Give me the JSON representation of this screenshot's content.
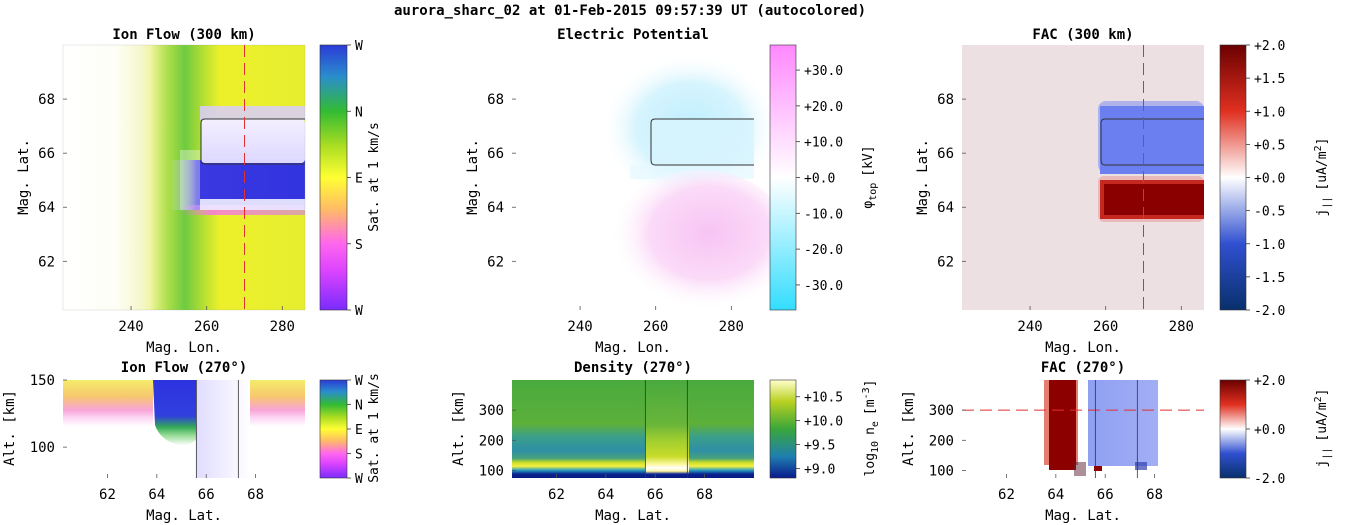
{
  "suptitle": "aurora_sharc_02 at 01-Feb-2015 09:57:39 UT (autocolored)",
  "colors": {
    "ref_line": "#e03030",
    "contour": "#333333",
    "fac_background": "#ede0e3",
    "fac_blue": "#6b7ff0",
    "fac_red": "#8a0000"
  },
  "chart_data": [
    {
      "id": "ion-flow-300",
      "type": "heatmap",
      "title": "Ion Flow (300 km)",
      "xlabel": "Mag. Lon.",
      "ylabel": "Mag. Lat.",
      "xlim": [
        222,
        286
      ],
      "ylim": [
        60.2,
        70
      ],
      "xticks": [
        240,
        260,
        280
      ],
      "yticks": [
        62,
        64,
        66,
        68
      ],
      "ref_line": {
        "orientation": "vertical",
        "value": 270
      },
      "contour_box": {
        "lon": [
          259.5,
          286
        ],
        "lat": [
          65.6,
          67.3
        ]
      },
      "colorbar": {
        "label": "Sat. at 1 km/s",
        "ticks": [
          "W",
          "N",
          "E",
          "S",
          "W"
        ],
        "colors": [
          "#7a2bff",
          "#ff66ff",
          "#ffff33",
          "#33bb33",
          "#2a3bd8"
        ]
      }
    },
    {
      "id": "electric-potential",
      "type": "heatmap",
      "title": "Electric Potential",
      "xlabel": "Mag. Lon.",
      "ylabel": "Mag. Lat.",
      "xlim": [
        222,
        286
      ],
      "ylim": [
        60.2,
        70
      ],
      "xticks": [
        240,
        260,
        280
      ],
      "yticks": [
        62,
        64,
        66,
        68
      ],
      "contour_box": {
        "lon": [
          259.5,
          286
        ],
        "lat": [
          65.6,
          67.3
        ]
      },
      "colorbar": {
        "label": "φ_top [kV]",
        "label_main": "φ",
        "label_sub": "top",
        "label_unit": "[kV]",
        "ticks": [
          "+30.0",
          "+20.0",
          "+10.0",
          "+0.0",
          "-10.0",
          "-20.0",
          "-30.0"
        ],
        "range": [
          -37,
          37
        ],
        "colors": [
          "#33ddff",
          "#ffffff",
          "#ff88ff"
        ]
      }
    },
    {
      "id": "fac-300",
      "type": "heatmap",
      "title": "FAC (300 km)",
      "xlabel": "Mag. Lon.",
      "ylabel": "Mag. Lat.",
      "xlim": [
        222,
        286
      ],
      "ylim": [
        60.2,
        70
      ],
      "xticks": [
        240,
        260,
        280
      ],
      "yticks": [
        62,
        64,
        66,
        68
      ],
      "ref_line": {
        "orientation": "vertical",
        "value": 270
      },
      "contour_box": {
        "lon": [
          259.5,
          286
        ],
        "lat": [
          65.6,
          67.3
        ]
      },
      "colorbar": {
        "label": "j_|| [uA/m^2]",
        "ticks": [
          "+2.0",
          "+1.5",
          "+1.0",
          "+0.5",
          "+0.0",
          "-0.5",
          "-1.0",
          "-1.5",
          "-2.0"
        ],
        "range": [
          -2.0,
          2.0
        ],
        "colors": [
          "#08306b",
          "#3050d0",
          "#ffffff",
          "#e03020",
          "#6b0000"
        ]
      }
    },
    {
      "id": "ion-flow-270",
      "type": "heatmap",
      "title": "Ion Flow (270°)",
      "xlabel": "Mag. Lat.",
      "ylabel": "Alt. [km]",
      "xlim": [
        60.2,
        70
      ],
      "ylim": [
        77,
        150
      ],
      "xticks": [
        62,
        64,
        66,
        68
      ],
      "yticks": [
        100,
        150
      ],
      "vlines": [
        65.6,
        67.3
      ],
      "colorbar": {
        "label": "Sat. at 1 km/s",
        "ticks": [
          "W",
          "N",
          "E",
          "S",
          "W"
        ],
        "colors": [
          "#7a2bff",
          "#ff66ff",
          "#ffff33",
          "#33bb33",
          "#2a3bd8"
        ]
      }
    },
    {
      "id": "density-270",
      "type": "heatmap",
      "title": "Density (270°)",
      "xlabel": "Mag. Lat.",
      "ylabel": "Alt. [km]",
      "xlim": [
        60.2,
        70
      ],
      "ylim": [
        75,
        400
      ],
      "xticks": [
        62,
        64,
        66,
        68
      ],
      "yticks": [
        100,
        200,
        300
      ],
      "vlines": [
        65.6,
        67.3
      ],
      "colorbar": {
        "label": "log_10 n_e [m^-3]",
        "ticks": [
          "+10.5",
          "+10.0",
          "+9.5",
          "+9.0"
        ],
        "range": [
          8.8,
          10.85
        ],
        "colors": [
          "#0a1a8c",
          "#1f7fb0",
          "#3aa63a",
          "#b8d020",
          "#ffffcc"
        ]
      }
    },
    {
      "id": "fac-270",
      "type": "heatmap",
      "title": "FAC (270°)",
      "xlabel": "Mag. Lat.",
      "ylabel": "Alt. [km]",
      "xlim": [
        60.2,
        70
      ],
      "ylim": [
        75,
        400
      ],
      "xticks": [
        62,
        64,
        66,
        68
      ],
      "yticks": [
        100,
        200,
        300
      ],
      "ref_line": {
        "orientation": "horizontal",
        "value": 300
      },
      "vlines": [
        65.6,
        67.3
      ],
      "colorbar": {
        "label": "j_|| [uA/m^2]",
        "ticks": [
          "+2.0",
          "+0.0",
          "-2.0"
        ],
        "range": [
          -2.0,
          2.0
        ],
        "colors": [
          "#08306b",
          "#3050d0",
          "#ffffff",
          "#e03020",
          "#6b0000"
        ]
      }
    }
  ]
}
